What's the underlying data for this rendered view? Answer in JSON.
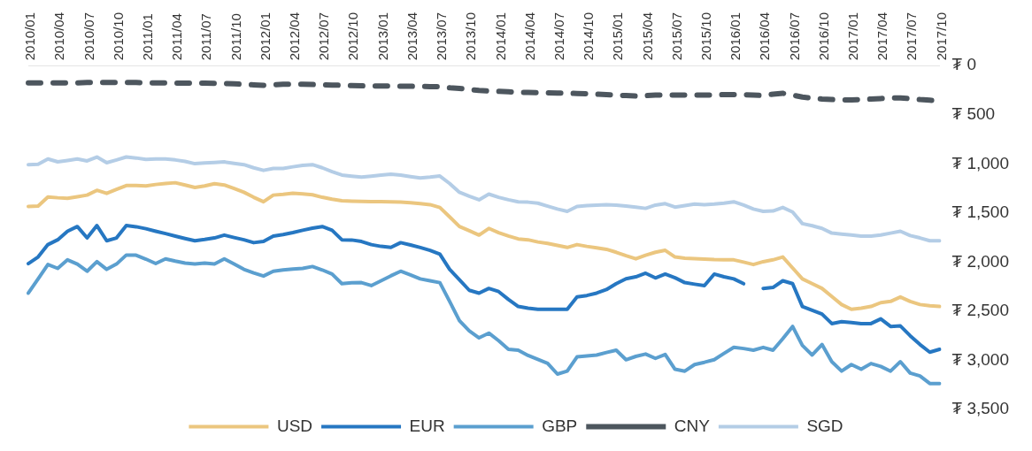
{
  "chart_data": {
    "type": "line",
    "categories": [
      "2010/01",
      null,
      null,
      "2010/04",
      null,
      null,
      "2010/07",
      null,
      null,
      "2010/10",
      null,
      null,
      "2011/01",
      null,
      null,
      "2011/04",
      null,
      null,
      "2011/07",
      null,
      null,
      "2011/10",
      null,
      null,
      "2012/01",
      null,
      null,
      "2012/04",
      null,
      null,
      "2012/07",
      null,
      null,
      "2012/10",
      null,
      null,
      "2013/01",
      null,
      null,
      "2013/04",
      null,
      null,
      "2013/07",
      null,
      null,
      "2013/10",
      null,
      null,
      "2014/01",
      null,
      null,
      "2014/04",
      null,
      null,
      "2014/07",
      null,
      null,
      "2014/10",
      null,
      null,
      "2015/01",
      null,
      null,
      "2015/04",
      null,
      null,
      "2015/07",
      null,
      null,
      "2015/10",
      null,
      null,
      "2016/01",
      null,
      null,
      "2016/04",
      null,
      null,
      "2016/07",
      null,
      null,
      "2016/10",
      null,
      null,
      "2017/01",
      null,
      null,
      "2017/04",
      null,
      null,
      "2017/07",
      null,
      null,
      "2017/10"
    ],
    "series": [
      {
        "name": "USD",
        "color": "#ebc67f",
        "line_style": "solid",
        "values": [
          1434,
          1430,
          1337,
          1345,
          1350,
          1335,
          1318,
          1269,
          1300,
          1260,
          1221,
          1221,
          1225,
          1210,
          1200,
          1192,
          1215,
          1240,
          1225,
          1202,
          1215,
          1250,
          1289,
          1340,
          1386,
          1318,
          1310,
          1299,
          1305,
          1315,
          1340,
          1360,
          1376,
          1380,
          1382,
          1384,
          1385,
          1386,
          1390,
          1395,
          1405,
          1415,
          1444,
          1540,
          1638,
          1680,
          1725,
          1657,
          1700,
          1735,
          1764,
          1773,
          1795,
          1810,
          1830,
          1851,
          1822,
          1840,
          1855,
          1870,
          1900,
          1935,
          1967,
          1930,
          1900,
          1880,
          1948,
          1960,
          1965,
          1970,
          1975,
          1977,
          1977,
          2000,
          2025,
          1996,
          1977,
          1948,
          2060,
          2171,
          2220,
          2268,
          2350,
          2432,
          2480,
          2470,
          2452,
          2413,
          2400,
          2355,
          2400,
          2432,
          2445,
          2452
        ]
      },
      {
        "name": "EUR",
        "color": "#2677c2",
        "line_style": "solid",
        "values": [
          2015,
          1948,
          1822,
          1773,
          1686,
          1638,
          1754,
          1628,
          1783,
          1754,
          1628,
          1640,
          1660,
          1686,
          1710,
          1735,
          1760,
          1783,
          1770,
          1754,
          1725,
          1750,
          1773,
          1802,
          1790,
          1735,
          1720,
          1700,
          1676,
          1655,
          1638,
          1676,
          1773,
          1775,
          1790,
          1822,
          1840,
          1851,
          1802,
          1825,
          1851,
          1880,
          1919,
          2074,
          2180,
          2287,
          2316,
          2268,
          2300,
          2380,
          2452,
          2470,
          2480,
          2480,
          2480,
          2480,
          2355,
          2340,
          2316,
          2280,
          2219,
          2170,
          2150,
          2113,
          2161,
          2122,
          2160,
          2209,
          2225,
          2239,
          2122,
          2150,
          2171,
          2220,
          null,
          2268,
          2258,
          2190,
          2219,
          2452,
          2490,
          2529,
          2626,
          2607,
          2615,
          2626,
          2626,
          2578,
          2655,
          2650,
          2750,
          2839,
          2917,
          2888
        ]
      },
      {
        "name": "GBP",
        "color": "#5b9fcf",
        "line_style": "solid",
        "values": [
          2316,
          2170,
          2025,
          2064,
          1977,
          2020,
          2093,
          1996,
          2074,
          2020,
          1928,
          1930,
          1970,
          2015,
          1967,
          1990,
          2010,
          2020,
          2010,
          2020,
          1967,
          2020,
          2074,
          2110,
          2142,
          2093,
          2080,
          2070,
          2064,
          2045,
          2080,
          2122,
          2219,
          2210,
          2209,
          2239,
          2190,
          2140,
          2093,
          2130,
          2171,
          2190,
          2209,
          2400,
          2597,
          2700,
          2771,
          2723,
          2800,
          2888,
          2897,
          2950,
          2990,
          3030,
          3140,
          3110,
          2965,
          2955,
          2946,
          2920,
          2897,
          2994,
          2960,
          2936,
          2980,
          2940,
          3091,
          3110,
          3043,
          3020,
          2994,
          2930,
          2868,
          2880,
          2897,
          2868,
          2897,
          2780,
          2655,
          2849,
          2946,
          2839,
          3014,
          3110,
          3043,
          3091,
          3033,
          3062,
          3110,
          3014,
          3130,
          3159,
          3236,
          3236
        ]
      },
      {
        "name": "CNY",
        "color": "#4d565e",
        "line_style": "dashed",
        "values": [
          175,
          175,
          175,
          175,
          175,
          175,
          172,
          172,
          172,
          172,
          172,
          172,
          175,
          175,
          175,
          177,
          177,
          178,
          178,
          180,
          182,
          185,
          190,
          195,
          200,
          195,
          190,
          188,
          190,
          192,
          195,
          198,
          200,
          203,
          205,
          208,
          208,
          208,
          210,
          210,
          212,
          213,
          215,
          225,
          232,
          242,
          252,
          258,
          262,
          266,
          271,
          273,
          275,
          277,
          279,
          281,
          283,
          286,
          290,
          295,
          300,
          305,
          310,
          305,
          300,
          300,
          300,
          300,
          300,
          300,
          300,
          295,
          295,
          295,
          300,
          305,
          290,
          281,
          300,
          320,
          330,
          340,
          345,
          349,
          349,
          345,
          340,
          335,
          330,
          329,
          335,
          345,
          352,
          359
        ]
      },
      {
        "name": "SGD",
        "color": "#b4cde6",
        "line_style": "solid",
        "values": [
          1008,
          1005,
          950,
          979,
          965,
          950,
          970,
          930,
          988,
          960,
          930,
          940,
          955,
          950,
          950,
          960,
          975,
          998,
          990,
          985,
          980,
          995,
          1008,
          1040,
          1066,
          1047,
          1047,
          1030,
          1015,
          1008,
          1040,
          1080,
          1114,
          1125,
          1134,
          1125,
          1115,
          1105,
          1115,
          1130,
          1143,
          1135,
          1124,
          1200,
          1289,
          1330,
          1366,
          1308,
          1340,
          1365,
          1386,
          1390,
          1400,
          1430,
          1460,
          1483,
          1434,
          1425,
          1420,
          1415,
          1420,
          1430,
          1440,
          1453,
          1420,
          1405,
          1440,
          1425,
          1410,
          1415,
          1410,
          1400,
          1386,
          1420,
          1460,
          1483,
          1480,
          1444,
          1490,
          1608,
          1630,
          1657,
          1705,
          1715,
          1725,
          1735,
          1735,
          1725,
          1705,
          1686,
          1730,
          1754,
          1783,
          1783
        ]
      }
    ],
    "ylim": [
      3500,
      0
    ],
    "yticks": [
      {
        "value": 0,
        "label": "₮ 0"
      },
      {
        "value": 500,
        "label": "₮ 500"
      },
      {
        "value": 1000,
        "label": "₮ 1,000"
      },
      {
        "value": 1500,
        "label": "₮ 1,500"
      },
      {
        "value": 2000,
        "label": "₮ 2,000"
      },
      {
        "value": 2500,
        "label": "₮ 2,500"
      },
      {
        "value": 3000,
        "label": "₮ 3,000"
      },
      {
        "value": 3500,
        "label": "₮ 3,500"
      }
    ],
    "grid": false,
    "legend": "bottom",
    "marker": "none"
  }
}
